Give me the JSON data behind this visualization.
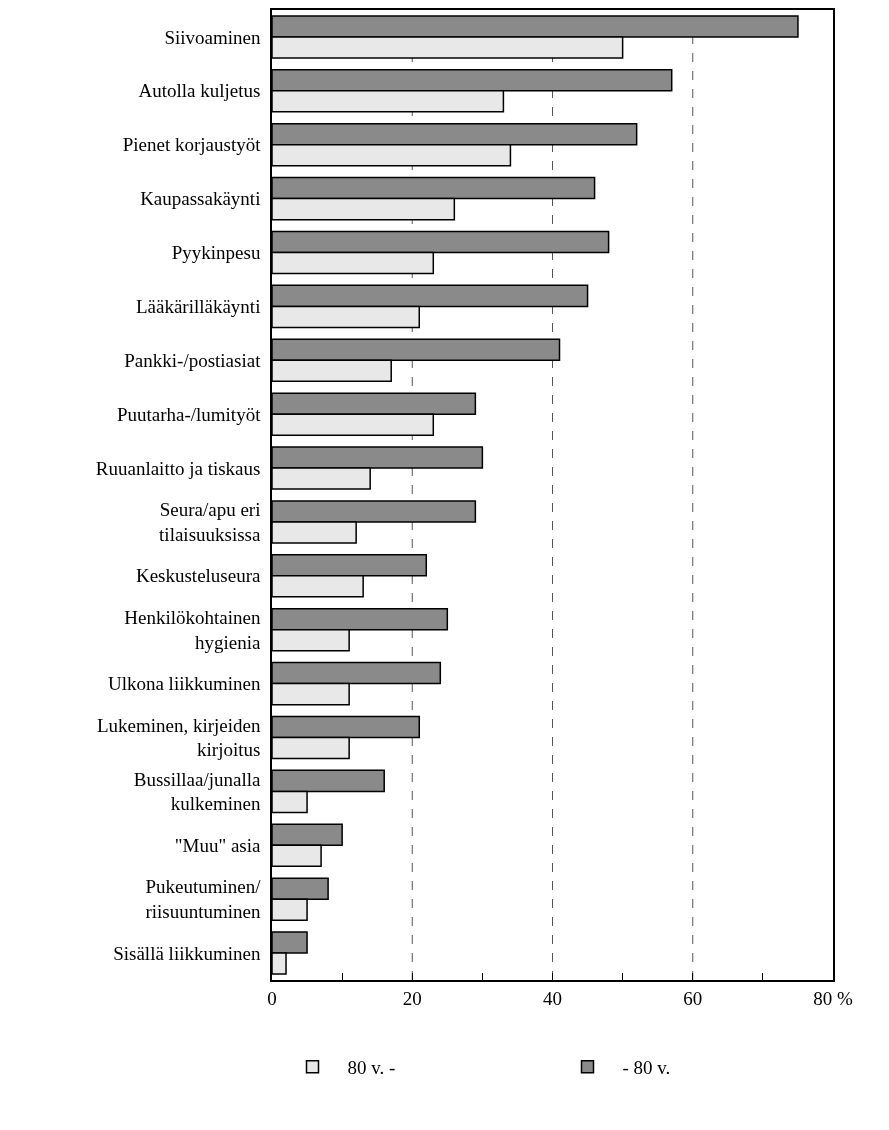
{
  "chart_data": {
    "type": "bar",
    "orientation": "horizontal",
    "categories": [
      "Siivoaminen",
      "Autolla kuljetus",
      "Pienet korjaustyöt",
      "Kaupassakäynti",
      "Pyykinpesu",
      "Lääkärilläkäynti",
      "Pankki-/postiasiat",
      "Puutarha-/lumityöt",
      "Ruuanlaitto ja tiskaus",
      "Seura/apu eri\ntilaisuuksissa",
      "Keskusteluseura",
      "Henkilökohtainen\nhygienia",
      "Ulkona liikkuminen",
      "Lukeminen, kirjeiden\nkirjoitus",
      "Bussillaa/junalla\nkulkeminen",
      "\"Muu\" asia",
      "Pukeutuminen/\nriisuuntuminen",
      "Sisällä liikkuminen"
    ],
    "series": [
      {
        "name": "- 80 v.",
        "color": "#8a8a8a",
        "values": [
          75,
          57,
          52,
          46,
          48,
          45,
          41,
          29,
          30,
          29,
          22,
          25,
          24,
          21,
          16,
          10,
          8,
          5
        ]
      },
      {
        "name": "80 v. -",
        "color": "#e8e8e8",
        "values": [
          50,
          33,
          34,
          26,
          23,
          21,
          17,
          23,
          14,
          12,
          13,
          11,
          11,
          11,
          5,
          7,
          5,
          2
        ]
      }
    ],
    "xlim": [
      0,
      80
    ],
    "xticks": [
      0,
      {
        "value": 10,
        "label": null
      },
      20,
      {
        "value": 30,
        "label": null
      },
      40,
      {
        "value": 50,
        "label": null
      },
      60,
      {
        "value": 70,
        "label": null
      },
      {
        "value": 80,
        "label": "80 %"
      }
    ],
    "grid": "x",
    "line_style": "dashed",
    "legend": "bottom"
  }
}
